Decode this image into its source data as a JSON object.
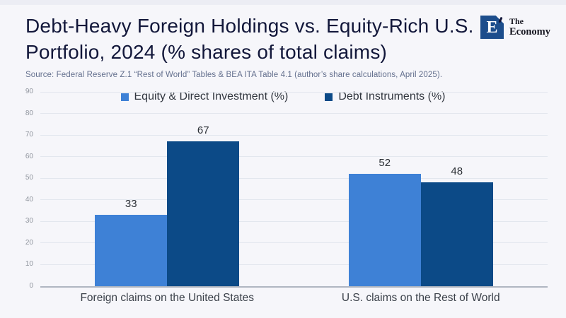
{
  "header": {
    "title_lines": [
      "Debt-Heavy Foreign Holdings vs. Equity-Rich U.S.",
      "Portfolio, 2024 (% shares of total claims)"
    ],
    "source": "Source:  Federal Reserve Z.1 “Rest of World” Tables & BEA ITA Table 4.1 (author’s share calculations, April 2025)."
  },
  "logo": {
    "monogram": "E",
    "brand_line1": "The",
    "brand_line2": "Economy",
    "brand_color": "#1d4e8c"
  },
  "chart_data": {
    "type": "bar",
    "title": "Debt-Heavy Foreign Holdings vs. Equity-Rich U.S. Portfolio, 2024 (% shares of total claims)",
    "categories": [
      "Foreign claims on the United States",
      "U.S. claims on the Rest of World"
    ],
    "series": [
      {
        "name": "Equity & Direct Investment (%)",
        "color": "#3e81d6",
        "values": [
          33,
          52
        ]
      },
      {
        "name": "Debt Instruments (%)",
        "color": "#0c4a87",
        "values": [
          67,
          48
        ]
      }
    ],
    "xlabel": "",
    "ylabel": "",
    "ylim": [
      0,
      90
    ],
    "yticks": [
      0,
      10,
      20,
      30,
      40,
      50,
      60,
      70,
      80,
      90
    ],
    "grid": "horizontal",
    "legend_position": "top-center",
    "show_value_labels": true
  },
  "colors": {
    "background": "#f6f6fa",
    "gridline": "#e3e7ee",
    "axis": "#b0b6c1",
    "title_text": "#12173a",
    "source_text": "#64708e"
  }
}
